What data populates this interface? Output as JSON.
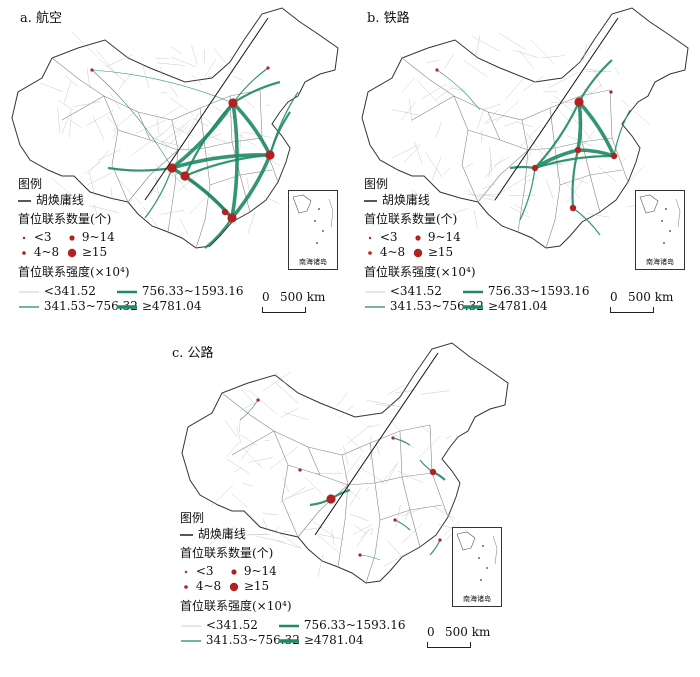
{
  "panels": [
    {
      "id": "a",
      "title": "a. 航空",
      "nodes": [
        [
          233,
          103,
          "L"
        ],
        [
          172,
          168,
          "L"
        ],
        [
          185,
          176,
          "L"
        ],
        [
          270,
          155,
          "L"
        ],
        [
          232,
          218,
          "L"
        ],
        [
          225,
          212,
          "M"
        ],
        [
          92,
          70,
          "S"
        ],
        [
          268,
          68,
          "S"
        ]
      ],
      "links": [
        [
          233,
          103,
          172,
          168,
          "s4"
        ],
        [
          233,
          103,
          270,
          155,
          "s4"
        ],
        [
          233,
          103,
          232,
          218,
          "s4"
        ],
        [
          172,
          168,
          270,
          155,
          "s4"
        ],
        [
          172,
          168,
          232,
          218,
          "s4"
        ],
        [
          270,
          155,
          232,
          218,
          "s4"
        ],
        [
          185,
          176,
          233,
          103,
          "s3"
        ],
        [
          185,
          176,
          270,
          155,
          "s3"
        ],
        [
          185,
          176,
          232,
          218,
          "s3"
        ],
        [
          233,
          103,
          280,
          82,
          "s3"
        ],
        [
          270,
          155,
          290,
          112,
          "s3"
        ],
        [
          172,
          168,
          108,
          168,
          "s3"
        ],
        [
          232,
          218,
          205,
          248,
          "s3"
        ],
        [
          233,
          103,
          268,
          68,
          "s2"
        ],
        [
          172,
          168,
          145,
          218,
          "s2"
        ],
        [
          92,
          70,
          172,
          168,
          "s1"
        ],
        [
          92,
          70,
          233,
          103,
          "s1"
        ],
        [
          270,
          155,
          298,
          92,
          "s2"
        ]
      ]
    },
    {
      "id": "b",
      "title": "b. 铁路",
      "nodes": [
        [
          579,
          102,
          "L"
        ],
        [
          578,
          150,
          "M"
        ],
        [
          535,
          168,
          "M"
        ],
        [
          614,
          156,
          "M"
        ],
        [
          573,
          208,
          "M"
        ],
        [
          437,
          70,
          "S"
        ],
        [
          611,
          92,
          "S"
        ]
      ],
      "links": [
        [
          579,
          102,
          578,
          150,
          "s4"
        ],
        [
          579,
          102,
          614,
          156,
          "s4"
        ],
        [
          578,
          150,
          614,
          156,
          "s4"
        ],
        [
          535,
          168,
          578,
          150,
          "s4"
        ],
        [
          535,
          168,
          614,
          156,
          "s3"
        ],
        [
          579,
          102,
          535,
          168,
          "s3"
        ],
        [
          573,
          208,
          578,
          150,
          "s3"
        ],
        [
          510,
          168,
          535,
          168,
          "s3"
        ],
        [
          579,
          102,
          612,
          60,
          "s3"
        ],
        [
          614,
          156,
          630,
          110,
          "s2"
        ],
        [
          573,
          208,
          600,
          235,
          "s2"
        ],
        [
          437,
          70,
          480,
          110,
          "s1"
        ],
        [
          535,
          168,
          520,
          220,
          "s2"
        ]
      ]
    },
    {
      "id": "c",
      "title": "c. 公路",
      "nodes": [
        [
          331,
          499,
          "L"
        ],
        [
          433,
          472,
          "M"
        ],
        [
          393,
          438,
          "S"
        ],
        [
          258,
          400,
          "S"
        ],
        [
          395,
          520,
          "S"
        ],
        [
          440,
          540,
          "S"
        ],
        [
          360,
          555,
          "S"
        ],
        [
          300,
          470,
          "S"
        ]
      ],
      "links": [
        [
          331,
          499,
          310,
          505,
          "s3"
        ],
        [
          331,
          499,
          350,
          490,
          "s3"
        ],
        [
          433,
          472,
          445,
          480,
          "s3"
        ],
        [
          433,
          472,
          420,
          460,
          "s2"
        ],
        [
          393,
          438,
          410,
          445,
          "s2"
        ],
        [
          395,
          520,
          410,
          530,
          "s2"
        ],
        [
          440,
          540,
          430,
          555,
          "s2"
        ],
        [
          258,
          400,
          240,
          420,
          "s1"
        ],
        [
          360,
          555,
          380,
          560,
          "s1"
        ]
      ]
    }
  ],
  "legend": {
    "heading": "图例",
    "hu_line": "胡焕庸线",
    "count_title": "首位联系数量(个)",
    "count_items": [
      "<3",
      "9~14",
      "4~8",
      "≥15"
    ],
    "strength_title": "首位联系强度(×10⁴)",
    "strength_items": [
      "<341.52",
      "756.33~1593.16",
      "341.53~756.32",
      "≥4781.04"
    ]
  },
  "scale": {
    "zero": "0",
    "label": "500 km"
  },
  "inset_label": "南海诸岛",
  "colors": {
    "node": "#b22222",
    "link": "#1f8a64",
    "border": "#333333",
    "hu_line": "#111111",
    "faint": "#bbbbbb"
  }
}
